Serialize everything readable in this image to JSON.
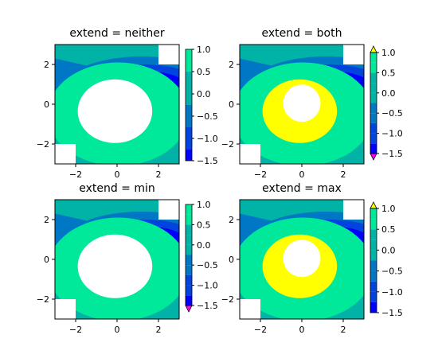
{
  "colors": {
    "background_level": "#00b3a6",
    "bands_low": [
      "#0000ff",
      "#0044dd",
      "#0077c4"
    ],
    "bands_high": [
      "#00e89a"
    ],
    "over": "#ffff00",
    "under": "#ff00ff",
    "masked": "#ffffff",
    "axes": "#000000"
  },
  "chart_data": [
    {
      "type": "contourf",
      "title": "extend = neither",
      "extend": "neither",
      "x_ticks": [
        "−2",
        "0",
        "2"
      ],
      "y_ticks": [
        "2",
        "0",
        "−2"
      ],
      "xlim": [
        -3,
        3
      ],
      "ylim": [
        -3,
        3
      ],
      "levels": [
        -1.5,
        -1.25,
        -1.0,
        -0.75,
        -0.5,
        -0.25,
        0.0,
        0.25,
        0.5,
        0.75,
        1.0
      ],
      "colorbar_ticks": [
        "1.0",
        "0.5",
        "0.0",
        "−0.5",
        "−1.0",
        "−1.5"
      ],
      "colorbar_tick_values": [
        1.0,
        0.5,
        0.0,
        -0.5,
        -1.0,
        -1.5
      ],
      "masked_corners": [
        "top-right",
        "bottom-left"
      ]
    },
    {
      "type": "contourf",
      "title": "extend = both",
      "extend": "both",
      "x_ticks": [
        "−2",
        "0",
        "2"
      ],
      "y_ticks": [
        "2",
        "0",
        "−2"
      ],
      "xlim": [
        -3,
        3
      ],
      "ylim": [
        -3,
        3
      ],
      "levels": [
        -1.5,
        -1.25,
        -1.0,
        -0.75,
        -0.5,
        -0.25,
        0.0,
        0.25,
        0.5,
        0.75,
        1.0
      ],
      "colorbar_ticks": [
        "1.0",
        "0.5",
        "0.0",
        "−0.5",
        "−1.0",
        "−1.5"
      ],
      "colorbar_tick_values": [
        1.0,
        0.5,
        0.0,
        -0.5,
        -1.0,
        -1.5
      ],
      "masked_corners": [
        "top-right",
        "bottom-left"
      ]
    },
    {
      "type": "contourf",
      "title": "extend = min",
      "extend": "min",
      "x_ticks": [
        "−2",
        "0",
        "2"
      ],
      "y_ticks": [
        "2",
        "0",
        "−2"
      ],
      "xlim": [
        -3,
        3
      ],
      "ylim": [
        -3,
        3
      ],
      "levels": [
        -1.5,
        -1.25,
        -1.0,
        -0.75,
        -0.5,
        -0.25,
        0.0,
        0.25,
        0.5,
        0.75,
        1.0
      ],
      "colorbar_ticks": [
        "1.0",
        "0.5",
        "0.0",
        "−0.5",
        "−1.0",
        "−1.5"
      ],
      "colorbar_tick_values": [
        1.0,
        0.5,
        0.0,
        -0.5,
        -1.0,
        -1.5
      ],
      "masked_corners": [
        "top-right",
        "bottom-left"
      ]
    },
    {
      "type": "contourf",
      "title": "extend = max",
      "extend": "max",
      "x_ticks": [
        "−2",
        "0",
        "2"
      ],
      "y_ticks": [
        "2",
        "0",
        "−2"
      ],
      "xlim": [
        -3,
        3
      ],
      "ylim": [
        -3,
        3
      ],
      "levels": [
        -1.5,
        -1.25,
        -1.0,
        -0.75,
        -0.5,
        -0.25,
        0.0,
        0.25,
        0.5,
        0.75,
        1.0
      ],
      "colorbar_ticks": [
        "1.0",
        "0.5",
        "0.0",
        "−0.5",
        "−1.0",
        "−1.5"
      ],
      "colorbar_tick_values": [
        1.0,
        0.5,
        0.0,
        -0.5,
        -1.0,
        -1.5
      ],
      "masked_corners": [
        "top-right",
        "bottom-left"
      ]
    }
  ]
}
